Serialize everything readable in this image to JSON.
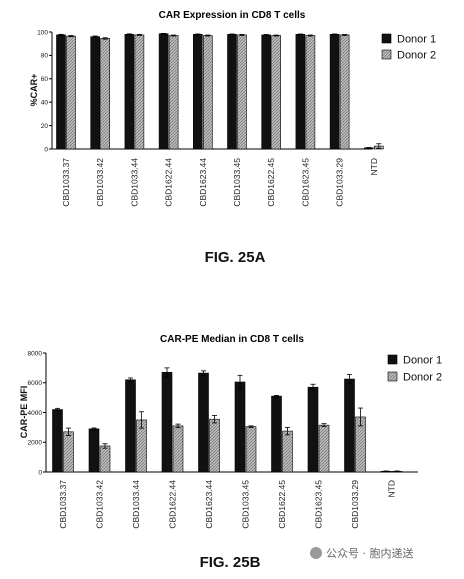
{
  "chart_data": [
    {
      "type": "bar",
      "title": "CAR Expression in CD8 T cells",
      "ylabel": "%CAR+",
      "xlabel": "",
      "ylim": [
        0,
        100
      ],
      "yticks": [
        0,
        20,
        40,
        60,
        80,
        100
      ],
      "grid": false,
      "legend_placement": "top-right",
      "categories": [
        "CBD1033.37",
        "CBD1033.42",
        "CBD1033.44",
        "CBD1622.44",
        "CBD1623.44",
        "CBD1033.45",
        "CBD1622.45",
        "CBD1623.45",
        "CBD1033.29",
        "NTD"
      ],
      "series": [
        {
          "name": "Donor 1",
          "color": "#111111",
          "pattern": "solid",
          "values": [
            97.5,
            96,
            98,
            98.5,
            98,
            98,
            97.5,
            98,
            98,
            1
          ],
          "errors": [
            0.5,
            0.6,
            0.4,
            0.3,
            0.3,
            0.3,
            0.4,
            0.3,
            0.3,
            0.3
          ]
        },
        {
          "name": "Donor 2",
          "color": "#9a9a9a",
          "pattern": "hatched",
          "values": [
            96.5,
            94.5,
            97.5,
            97,
            97,
            97.5,
            97,
            97,
            97.5,
            2.5
          ],
          "errors": [
            0.5,
            0.6,
            0.4,
            0.4,
            0.4,
            0.4,
            0.4,
            0.4,
            0.4,
            2
          ]
        }
      ],
      "figure_label": "FIG. 25A"
    },
    {
      "type": "bar",
      "title": "CAR-PE Median in CD8 T cells",
      "ylabel": "CAR-PE MFI",
      "xlabel": "",
      "ylim": [
        0,
        8000
      ],
      "yticks": [
        0,
        2000,
        4000,
        6000,
        8000
      ],
      "grid": false,
      "legend_placement": "top-right",
      "categories": [
        "CBD1033.37",
        "CBD1033.42",
        "CBD1033.44",
        "CBD1622.44",
        "CBD1623.44",
        "CBD1033.45",
        "CBD1622.45",
        "CBD1623.45",
        "CBD1033.29",
        "NTD"
      ],
      "series": [
        {
          "name": "Donor 1",
          "color": "#111111",
          "pattern": "solid",
          "values": [
            4200,
            2900,
            6200,
            6700,
            6650,
            6050,
            5100,
            5700,
            6250,
            50
          ],
          "errors": [
            80,
            60,
            120,
            300,
            150,
            450,
            50,
            200,
            300,
            20
          ]
        },
        {
          "name": "Donor 2",
          "color": "#9a9a9a",
          "pattern": "hatched",
          "values": [
            2700,
            1750,
            3500,
            3100,
            3550,
            3050,
            2750,
            3150,
            3700,
            50
          ],
          "errors": [
            250,
            150,
            550,
            120,
            250,
            50,
            250,
            100,
            600,
            20
          ]
        }
      ],
      "figure_label": "FIG. 25B"
    }
  ],
  "watermark": "公众号 · 胞内递送"
}
